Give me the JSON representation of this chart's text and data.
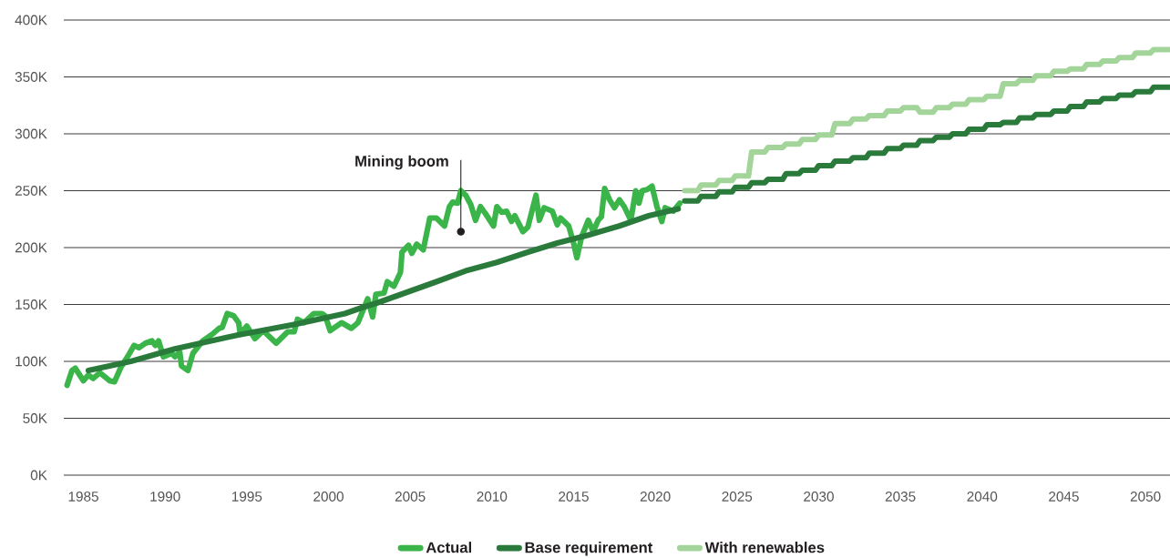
{
  "chart_data": {
    "type": "line",
    "xlim": [
      1983.8,
      2051.5
    ],
    "ylim": [
      0,
      400
    ],
    "xticks": [
      1985,
      1990,
      1995,
      2000,
      2005,
      2010,
      2015,
      2020,
      2025,
      2030,
      2035,
      2040,
      2045,
      2050
    ],
    "yticks": [
      {
        "value": 0,
        "label": "0K"
      },
      {
        "value": 50,
        "label": "50K"
      },
      {
        "value": 100,
        "label": "100K"
      },
      {
        "value": 150,
        "label": "150K"
      },
      {
        "value": 200,
        "label": "200K"
      },
      {
        "value": 250,
        "label": "250K"
      },
      {
        "value": 300,
        "label": "300K"
      },
      {
        "value": 350,
        "label": "350K"
      },
      {
        "value": 400,
        "label": "400K"
      }
    ],
    "grid": "y",
    "legend": "bottom",
    "line_style": "solid",
    "annotations": [
      {
        "text": "Mining boom",
        "x": 2008.1,
        "y": 214
      }
    ],
    "series": [
      {
        "name": "Actual",
        "color": "#3bb54a",
        "x": [
          1984.0,
          1984.3,
          1984.5,
          1985.0,
          1985.3,
          1985.6,
          1986.0,
          1986.6,
          1986.9,
          1987.3,
          1987.7,
          1988.1,
          1988.4,
          1988.8,
          1989.2,
          1989.4,
          1989.6,
          1989.9,
          1990.4,
          1990.6,
          1990.9,
          1991.0,
          1991.4,
          1991.7,
          1992.3,
          1992.9,
          1993.3,
          1993.5,
          1993.8,
          1994.2,
          1994.5,
          1994.6,
          1995.0,
          1995.5,
          1996.0,
          1996.8,
          1997.5,
          1997.9,
          1998.1,
          1998.5,
          1999.1,
          1999.6,
          1999.8,
          2000.1,
          2000.8,
          2001.4,
          2001.8,
          2002.4,
          2002.7,
          2002.9,
          2003.4,
          2003.6,
          2004.0,
          2004.4,
          2004.5,
          2004.9,
          2005.1,
          2005.4,
          2005.8,
          2006.2,
          2006.6,
          2007.1,
          2007.4,
          2007.6,
          2007.9,
          2008.1,
          2008.4,
          2008.7,
          2009.0,
          2009.3,
          2009.6,
          2010.1,
          2010.3,
          2010.6,
          2010.9,
          2011.2,
          2011.4,
          2011.9,
          2012.2,
          2012.7,
          2012.9,
          2013.2,
          2013.7,
          2014.0,
          2014.2,
          2014.7,
          2015.0,
          2015.2,
          2015.5,
          2015.9,
          2016.2,
          2016.5,
          2016.7,
          2016.9,
          2017.2,
          2017.5,
          2017.8,
          2018.1,
          2018.5,
          2018.8,
          2019.0,
          2019.2,
          2019.5,
          2019.8,
          2020.1,
          2020.4,
          2020.6,
          2021.1,
          2021.5
        ],
        "values": [
          79,
          92,
          94,
          83,
          88,
          85,
          90,
          83,
          82,
          95,
          104,
          114,
          112,
          116,
          118,
          114,
          118,
          104,
          107,
          104,
          108,
          96,
          92,
          107,
          118,
          124,
          129,
          130,
          142,
          140,
          134,
          124,
          131,
          120,
          127,
          116,
          126,
          126,
          137,
          134,
          142,
          142,
          140,
          127,
          134,
          129,
          134,
          155,
          139,
          159,
          160,
          170,
          166,
          178,
          196,
          202,
          195,
          203,
          198,
          226,
          226,
          219,
          236,
          240,
          239,
          250,
          246,
          238,
          224,
          236,
          230,
          219,
          236,
          231,
          232,
          223,
          228,
          214,
          218,
          246,
          224,
          235,
          232,
          220,
          226,
          219,
          204,
          191,
          210,
          224,
          214,
          224,
          227,
          252,
          242,
          235,
          242,
          236,
          224,
          250,
          239,
          250,
          251,
          254,
          236,
          223,
          235,
          232,
          239
        ]
      },
      {
        "name": "Base requirement",
        "color": "#2a7a3b",
        "x": [
          1985.3,
          1987.9,
          1990.6,
          1994.4,
          1998.1,
          2001.0,
          2002.2,
          2002.9,
          2006.6,
          2008.5,
          2010.3,
          2012.2,
          2014.0,
          2015.9,
          2017.8,
          2019.6,
          2021.4,
          2021.6,
          2021.8,
          2022.6,
          2022.8,
          2023.7,
          2023.9,
          2024.7,
          2024.9,
          2025.7,
          2025.9,
          2026.7,
          2026.9,
          2027.8,
          2028.0,
          2028.8,
          2029.0,
          2029.8,
          2030.0,
          2030.8,
          2031.0,
          2031.9,
          2032.1,
          2032.9,
          2033.1,
          2034.0,
          2034.2,
          2035.0,
          2035.2,
          2036.0,
          2036.2,
          2037.0,
          2037.2,
          2038.0,
          2038.2,
          2039.0,
          2039.2,
          2040.1,
          2040.3,
          2041.1,
          2041.3,
          2042.1,
          2042.3,
          2043.1,
          2043.3,
          2044.2,
          2044.4,
          2045.2,
          2045.4,
          2046.2,
          2046.4,
          2047.2,
          2047.4,
          2048.2,
          2048.4,
          2049.2,
          2049.4,
          2050.3,
          2050.5,
          2051.5
        ],
        "values": [
          92,
          100,
          111,
          123,
          133,
          142,
          148,
          151,
          170,
          180,
          187,
          196,
          204,
          211,
          219,
          228,
          234,
          null,
          241,
          241,
          245,
          245,
          249,
          249,
          253,
          253,
          257,
          257,
          260,
          260,
          265,
          265,
          268,
          268,
          272,
          272,
          276,
          276,
          279,
          279,
          283,
          283,
          287,
          287,
          290,
          290,
          294,
          294,
          297,
          297,
          300,
          300,
          304,
          304,
          308,
          308,
          310,
          310,
          314,
          314,
          317,
          317,
          320,
          320,
          324,
          324,
          328,
          328,
          331,
          331,
          334,
          334,
          337,
          337,
          341,
          341
        ]
      },
      {
        "name": "With renewables",
        "color": "#a3d49a",
        "x": [
          2021.8,
          2022.6,
          2022.8,
          2023.7,
          2023.9,
          2024.7,
          2024.9,
          2025.7,
          2025.9,
          2026.7,
          2026.9,
          2027.8,
          2028.0,
          2028.8,
          2029.0,
          2029.8,
          2030.0,
          2030.8,
          2031.0,
          2031.9,
          2032.1,
          2032.9,
          2033.1,
          2034.0,
          2034.2,
          2035.0,
          2035.2,
          2036.0,
          2036.2,
          2037.0,
          2037.2,
          2038.0,
          2038.2,
          2039.0,
          2039.2,
          2040.1,
          2040.3,
          2041.1,
          2041.3,
          2042.1,
          2042.3,
          2043.1,
          2043.3,
          2044.2,
          2044.4,
          2045.2,
          2045.4,
          2046.2,
          2046.4,
          2047.2,
          2047.4,
          2048.2,
          2048.4,
          2049.2,
          2049.4,
          2050.3,
          2050.5,
          2051.5
        ],
        "values": [
          250,
          250,
          255,
          255,
          259,
          259,
          263,
          263,
          284,
          284,
          288,
          288,
          291,
          291,
          295,
          295,
          299,
          299,
          309,
          309,
          313,
          313,
          316,
          316,
          320,
          320,
          323,
          323,
          319,
          319,
          323,
          323,
          326,
          326,
          330,
          330,
          333,
          333,
          344,
          344,
          347,
          347,
          351,
          351,
          355,
          355,
          357,
          357,
          361,
          361,
          364,
          364,
          367,
          367,
          371,
          371,
          374,
          374
        ]
      }
    ]
  }
}
